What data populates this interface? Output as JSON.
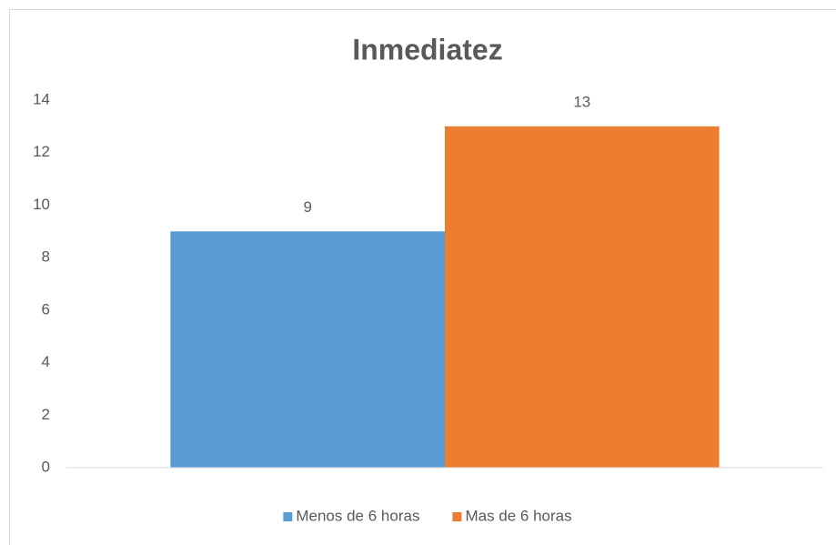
{
  "chart_data": {
    "type": "bar",
    "title": "Inmediatez",
    "categories": [
      null
    ],
    "series": [
      {
        "name": "Menos de 6 horas",
        "color": "#5b9bd5",
        "values": [
          9
        ]
      },
      {
        "name": "Mas de 6 horas",
        "color": "#ed7d31",
        "values": [
          13
        ]
      }
    ],
    "ylim": [
      0,
      14
    ],
    "yticks": [
      0,
      2,
      4,
      6,
      8,
      10,
      12,
      14
    ],
    "grid": false,
    "legend": "bottom",
    "data_labels": true
  }
}
